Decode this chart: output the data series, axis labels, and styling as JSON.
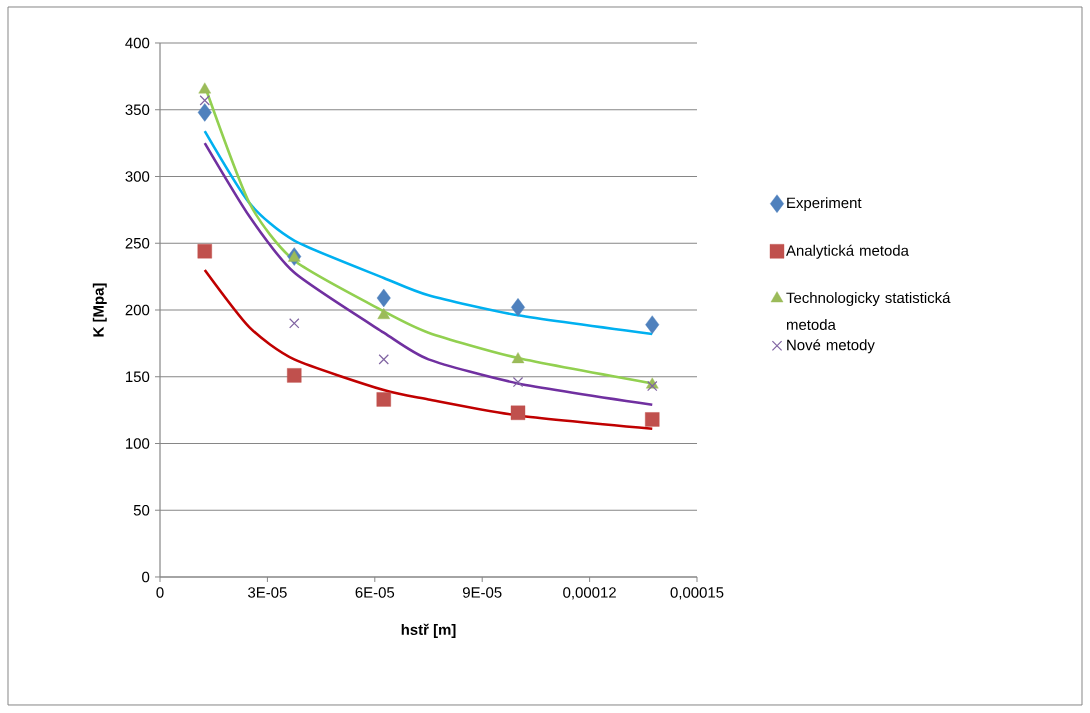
{
  "chart_data": {
    "type": "scatter",
    "xlabel": "hstř [m]",
    "ylabel": "K [Mpa]",
    "xlim": [
      0,
      0.00015
    ],
    "ylim": [
      0,
      400
    ],
    "xticks": [
      0,
      {
        "value": 3e-05,
        "label": "3E-05"
      },
      {
        "value": 6e-05,
        "label": "6E-05"
      },
      {
        "value": 9e-05,
        "label": "9E-05"
      },
      {
        "value": 0.00012,
        "label": "0,00012"
      },
      {
        "value": 0.00015,
        "label": "0,00015"
      }
    ],
    "yticks": [
      0,
      50,
      100,
      150,
      200,
      250,
      300,
      350,
      400
    ],
    "grid": "y",
    "legend": "right",
    "series": [
      {
        "name": "Experiment",
        "color": "#4f81bd",
        "marker": "diamond",
        "x": [
          1.25e-05,
          3.75e-05,
          6.25e-05,
          0.0001,
          0.0001375
        ],
        "values": [
          348,
          240,
          209,
          202,
          189
        ]
      },
      {
        "name": "Analytická metoda",
        "color": "#c0504d",
        "marker": "square",
        "x": [
          1.25e-05,
          3.75e-05,
          6.25e-05,
          0.0001,
          0.0001375
        ],
        "values": [
          244,
          151,
          133,
          123,
          118
        ]
      },
      {
        "name": "Technologicky statistická metoda",
        "color": "#9bbb59",
        "marker": "triangle",
        "x": [
          1.25e-05,
          3.75e-05,
          6.25e-05,
          0.0001,
          0.0001375
        ],
        "values": [
          365,
          239,
          196,
          163,
          144
        ]
      },
      {
        "name": "Nové metody",
        "color": "#8064a2",
        "marker": "cross",
        "x": [
          1.25e-05,
          3.75e-05,
          6.25e-05,
          0.0001,
          0.0001375
        ],
        "values": [
          357,
          190,
          163,
          146,
          143
        ]
      },
      {
        "type": "line",
        "color": "#00b0f0",
        "marker": "none",
        "x": [
          1.25e-05,
          2.5e-05,
          3.75e-05,
          6.25e-05,
          7.5e-05,
          0.0001,
          0.0001375
        ],
        "values": [
          334,
          280,
          252,
          224,
          211,
          196,
          182
        ]
      },
      {
        "type": "line",
        "color": "#c00000",
        "marker": "none",
        "x": [
          1.25e-05,
          2.5e-05,
          3.75e-05,
          6.25e-05,
          7.5e-05,
          0.0001,
          0.0001375
        ],
        "values": [
          230,
          187,
          163,
          140,
          133,
          121,
          111
        ]
      },
      {
        "type": "line",
        "color": "#92d050",
        "marker": "none",
        "x": [
          1.25e-05,
          2.5e-05,
          3.75e-05,
          6.25e-05,
          7.5e-05,
          0.0001,
          0.0001375
        ],
        "values": [
          368,
          280,
          237,
          199,
          183,
          164,
          145
        ]
      },
      {
        "type": "line",
        "color": "#7030a0",
        "marker": "none",
        "x": [
          1.25e-05,
          2.5e-05,
          3.75e-05,
          6.25e-05,
          7.5e-05,
          0.0001,
          0.0001375
        ],
        "values": [
          325,
          270,
          228,
          183,
          163,
          145,
          129
        ]
      }
    ]
  }
}
